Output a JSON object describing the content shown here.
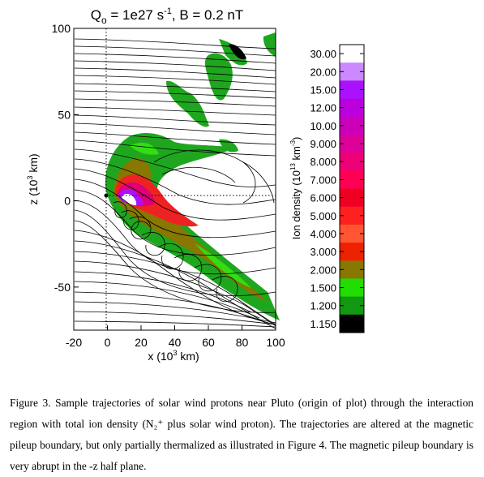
{
  "figure": {
    "title_main": "Q",
    "title_sub": "o",
    "title_rest": " = 1e27 s",
    "title_sup": "-1",
    "title_tail": ", B = 0.2 nT",
    "y_axis_label_pre": "z (10",
    "y_axis_label_sup": "3",
    "y_axis_label_post": " km)",
    "x_axis_label_pre": "x (10",
    "x_axis_label_sup": "3",
    "x_axis_label_post": " km)",
    "colorbar_label_pre": "Ion density (10",
    "colorbar_label_sup": "13",
    "colorbar_label_mid": " km",
    "colorbar_label_sup2": "-3",
    "colorbar_label_post": ")",
    "colorbar_levels": [
      "30.00",
      "20.00",
      "15.00",
      "12.00",
      "10.00",
      "9.000",
      "8.000",
      "7.000",
      "6.000",
      "5.000",
      "4.000",
      "3.000",
      "2.000",
      "1.500",
      "1.200",
      "1.150"
    ],
    "colorbar_colors": [
      "#ffffff",
      "#cc88ff",
      "#aa11ff",
      "#bb00dd",
      "#cc00bb",
      "#dd0099",
      "#ee0077",
      "#ff0055",
      "#ee0022",
      "#ff2020",
      "#ff5533",
      "#ee2200",
      "#887700",
      "#22dd00",
      "#119911",
      "#000000"
    ]
  },
  "chart_data": {
    "type": "contour",
    "x_ticks": [
      "-20",
      "0",
      "20",
      "40",
      "60",
      "80",
      "100"
    ],
    "y_ticks": [
      "100",
      "50",
      "0",
      "-50"
    ],
    "xlim": [
      -20,
      100
    ],
    "ylim": [
      -75,
      100
    ]
  },
  "caption": {
    "text": "Figure 3. Sample trajectories of solar wind protons near Pluto (origin of plot) through the interaction region with total ion density (N₂⁺ plus solar wind proton). The trajectories are altered at the magnetic pileup boundary, but only partially thermalized as illustrated in Figure 4. The magnetic pileup boundary is very abrupt in the -z half plane."
  }
}
